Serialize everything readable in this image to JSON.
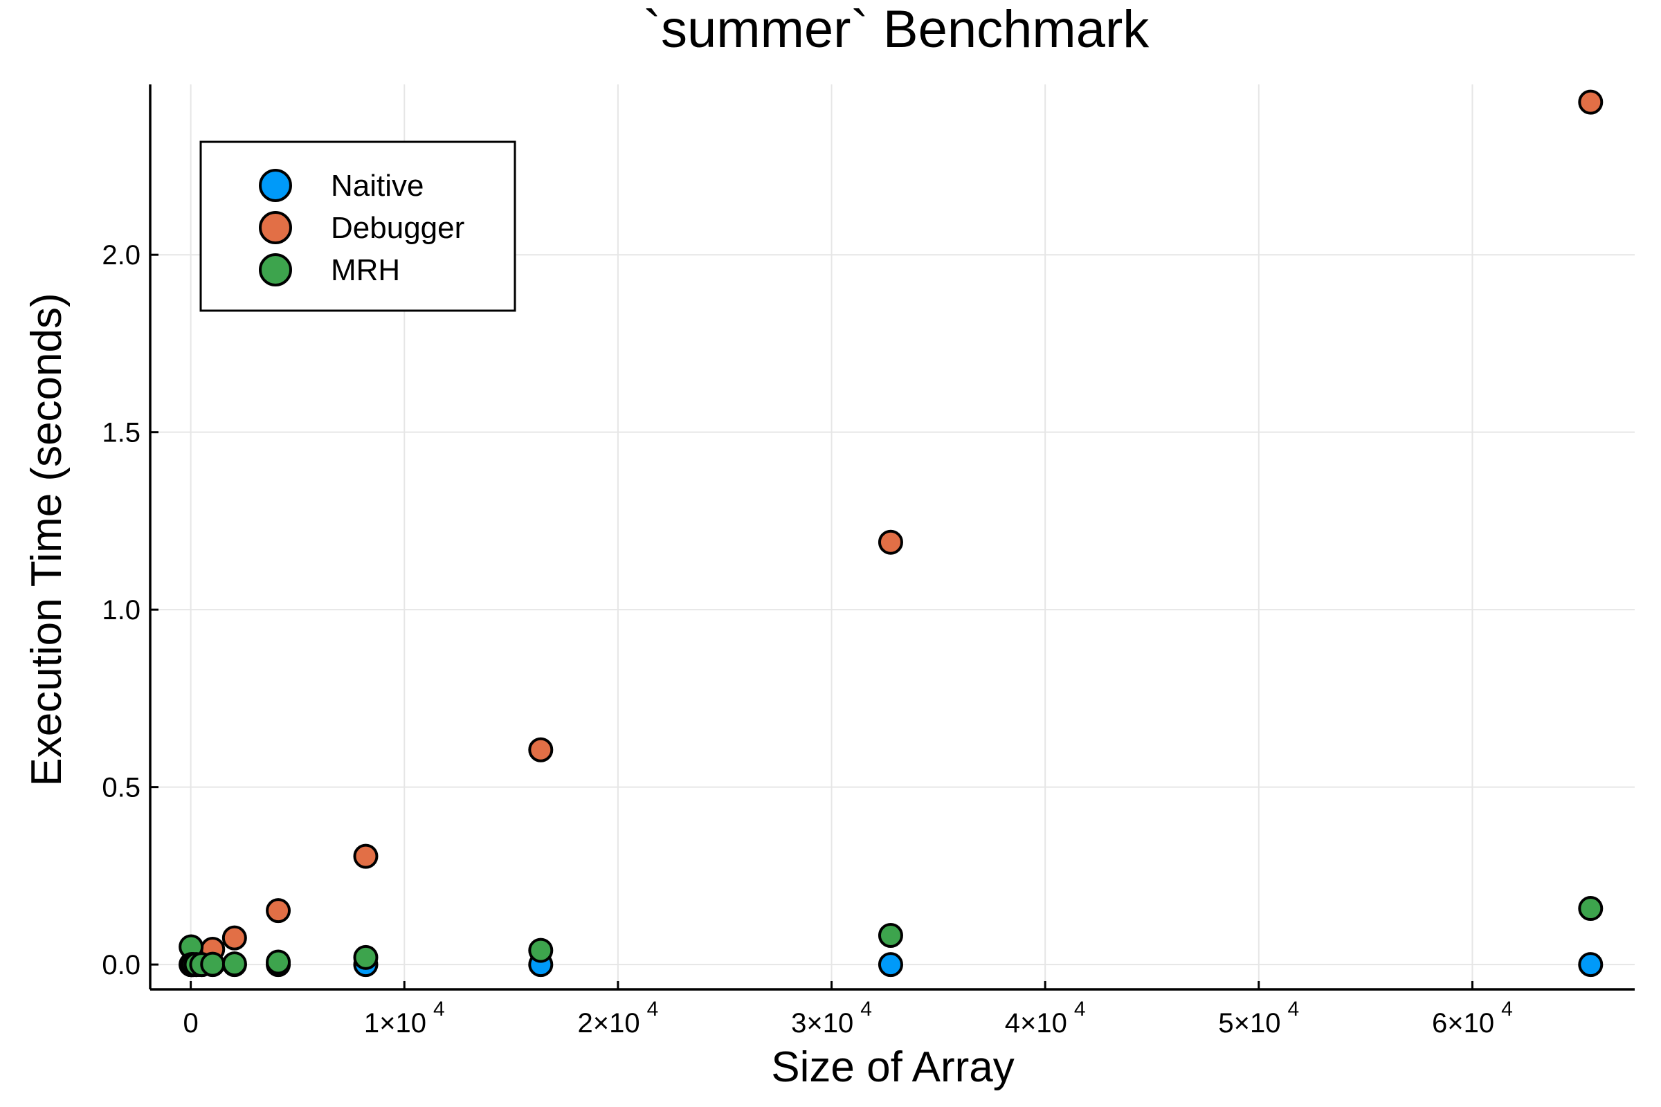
{
  "chart_data": {
    "type": "scatter",
    "title": "`summer` Benchmark",
    "xlabel": "Size of Array",
    "ylabel": "Execution Time (seconds)",
    "xlim": [
      -1900,
      67600
    ],
    "ylim": [
      -0.07,
      2.48
    ],
    "xticks": [
      {
        "value": 0,
        "base": "0",
        "exp": ""
      },
      {
        "value": 10000,
        "base": "1×10",
        "exp": "4"
      },
      {
        "value": 20000,
        "base": "2×10",
        "exp": "4"
      },
      {
        "value": 30000,
        "base": "3×10",
        "exp": "4"
      },
      {
        "value": 40000,
        "base": "4×10",
        "exp": "4"
      },
      {
        "value": 50000,
        "base": "5×10",
        "exp": "4"
      },
      {
        "value": 60000,
        "base": "6×10",
        "exp": "4"
      }
    ],
    "yticks": [
      {
        "value": 0.0,
        "label": "0.0"
      },
      {
        "value": 0.5,
        "label": "0.5"
      },
      {
        "value": 1.0,
        "label": "1.0"
      },
      {
        "value": 1.5,
        "label": "1.5"
      },
      {
        "value": 2.0,
        "label": "2.0"
      }
    ],
    "grid": true,
    "legend_position": "top-left",
    "series": [
      {
        "name": "Naitive",
        "color": "#009af9",
        "x": [
          16,
          32,
          64,
          128,
          256,
          512,
          1024,
          2048,
          4096,
          8192,
          16384,
          32768,
          65536
        ],
        "y": [
          0.0,
          0.0,
          0.0,
          0.0,
          0.0,
          0.0,
          0.0,
          0.0,
          0.0,
          0.0,
          0.0,
          0.0,
          0.0
        ]
      },
      {
        "name": "Debugger",
        "color": "#e26f46",
        "x": [
          16,
          32,
          64,
          128,
          256,
          512,
          1024,
          2048,
          4096,
          8192,
          16384,
          32768,
          65536
        ],
        "y": [
          0.0,
          0.0,
          0.001,
          0.002,
          0.005,
          0.01,
          0.043,
          0.075,
          0.152,
          0.305,
          0.605,
          1.19,
          2.43
        ]
      },
      {
        "name": "MRH",
        "color": "#3da44d",
        "x": [
          16,
          32,
          64,
          128,
          256,
          512,
          1024,
          2048,
          4096,
          8192,
          16384,
          32768,
          65536
        ],
        "y": [
          0.05,
          0.0,
          0.0,
          0.0,
          0.0,
          0.0,
          0.001,
          0.002,
          0.007,
          0.02,
          0.04,
          0.082,
          0.158
        ]
      }
    ]
  }
}
